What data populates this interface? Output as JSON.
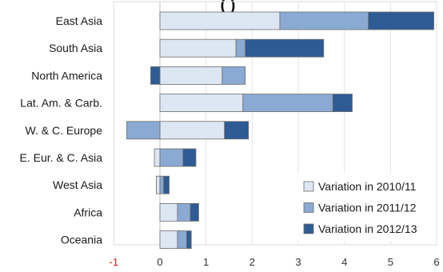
{
  "chart_data": {
    "type": "bar",
    "orientation": "horizontal",
    "stacked": true,
    "title_fragment": "(         )",
    "categories": [
      "East Asia",
      "South Asia",
      "North America",
      "Lat. Am. & Carb.",
      "W. & C. Europe",
      "E. Eur. & C. Asia",
      "West Asia",
      "Africa",
      "Oceania"
    ],
    "series": [
      {
        "name": "Variation in 2010/11",
        "color": "#dde6f3",
        "values": [
          2.6,
          1.65,
          1.35,
          1.8,
          1.4,
          -0.12,
          -0.08,
          0.38,
          0.38
        ]
      },
      {
        "name": "Variation in 2011/12",
        "color": "#8aaad3",
        "values": [
          1.92,
          0.2,
          0.5,
          1.95,
          -0.72,
          0.5,
          0.08,
          0.28,
          0.2
        ]
      },
      {
        "name": "Variation in 2012/13",
        "color": "#2e5b94",
        "values": [
          1.42,
          1.7,
          -0.2,
          0.42,
          0.52,
          0.28,
          0.12,
          0.18,
          0.1
        ]
      }
    ],
    "xlim": [
      -1,
      6
    ],
    "xticks": [
      "-1",
      "0",
      "1",
      "2",
      "3",
      "4",
      "5",
      "6"
    ],
    "negative_tick_color": "#d02020",
    "grid": "vertical",
    "legend_position": "bottom-right"
  }
}
